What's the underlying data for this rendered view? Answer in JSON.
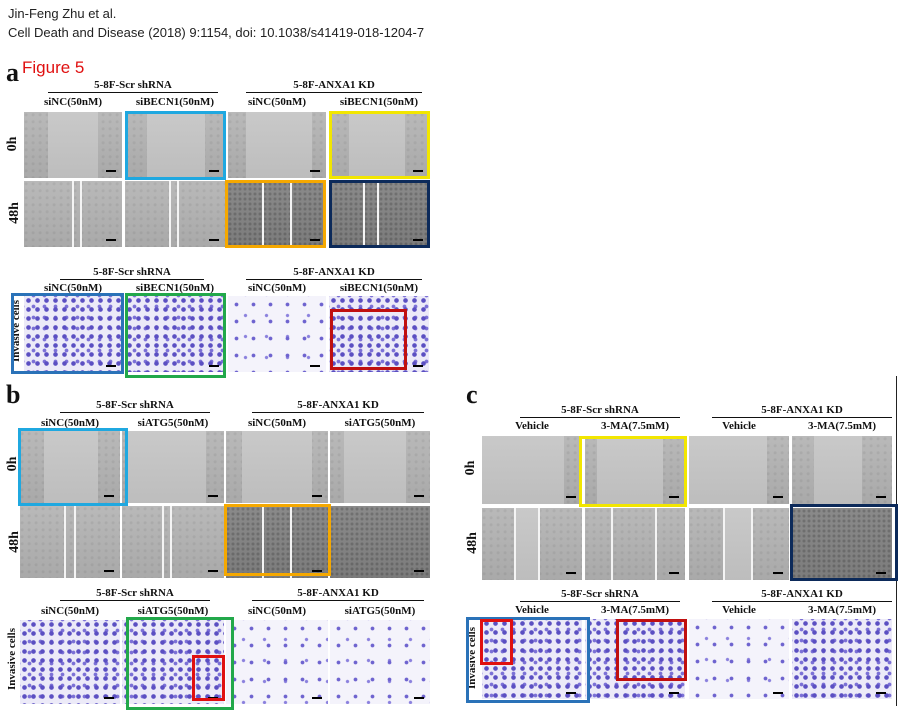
{
  "header": {
    "authors": "Jin-Feng Zhu et al.",
    "citation": "Cell Death and Disease (2018) 9:1154, doi: 10.1038/s41419-018-1204-7"
  },
  "figure_label": "Figure 5",
  "panels": {
    "a": {
      "letter": "a",
      "scratch": {
        "group1": "5-8F-Scr shRNA",
        "group2": "5-8F-ANXA1 KD",
        "conds": [
          "siNC(50nM)",
          "siBECN1(50nM)",
          "siNC(50nM)",
          "siBECN1(50nM)"
        ],
        "rows": [
          "0h",
          "48h"
        ]
      },
      "invasion": {
        "group1": "5-8F-Scr shRNA",
        "group2": "5-8F-ANXA1 KD",
        "conds": [
          "siNC(50nM)",
          "siBECN1(50nM)",
          "siNC(50nM)",
          "siBECN1(50nM)"
        ],
        "row": "Invasive cells"
      }
    },
    "b": {
      "letter": "b",
      "scratch": {
        "group1": "5-8F-Scr shRNA",
        "group2": "5-8F-ANXA1 KD",
        "conds": [
          "siNC(50nM)",
          "siATG5(50nM)",
          "siNC(50nM)",
          "siATG5(50nM)"
        ],
        "rows": [
          "0h",
          "48h"
        ]
      },
      "invasion": {
        "group1": "5-8F-Scr shRNA",
        "group2": "5-8F-ANXA1 KD",
        "conds": [
          "siNC(50nM)",
          "siATG5(50nM)",
          "siNC(50nM)",
          "siATG5(50nM)"
        ],
        "row": "Invasive cells"
      }
    },
    "c": {
      "letter": "c",
      "scratch": {
        "group1": "5-8F-Scr shRNA",
        "group2": "5-8F-ANXA1 KD",
        "conds": [
          "Vehicle",
          "3-MA(7.5mM)",
          "Vehicle",
          "3-MA(7.5mM)"
        ],
        "rows": [
          "0h",
          "48h"
        ]
      },
      "invasion": {
        "group1": "5-8F-Scr shRNA",
        "group2": "5-8F-ANXA1 KD",
        "conds": [
          "Vehicle",
          "3-MA(7.5mM)",
          "Vehicle",
          "3-MA(7.5mM)"
        ],
        "row": "Invasive cells"
      }
    }
  },
  "highlight_colors": {
    "light_blue": "#1fa8e0",
    "yellow": "#f2e600",
    "orange": "#f5a800",
    "navy": "#0c2a5a",
    "blue": "#2a72b8",
    "green": "#22a84a",
    "red": "#c01010"
  }
}
